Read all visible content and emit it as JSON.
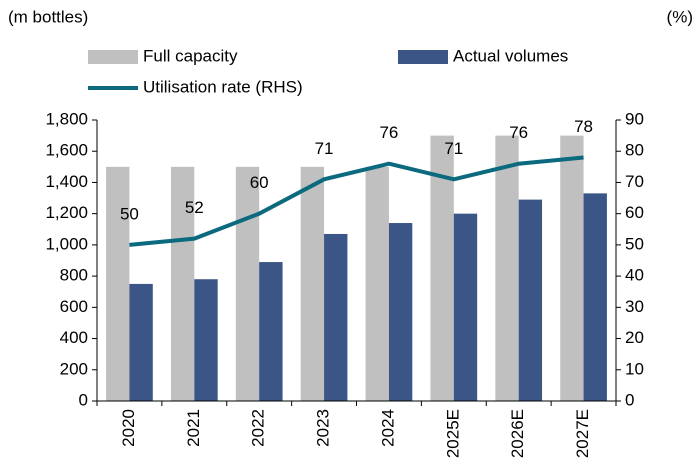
{
  "chart_data": {
    "type": "bar_line",
    "y_label": "(m bottles)",
    "y2_label": "(%)",
    "categories": [
      "2020",
      "2021",
      "2022",
      "2023",
      "2024",
      "2025E",
      "2026E",
      "2027E"
    ],
    "series": [
      {
        "name": "Full capacity",
        "type": "bar",
        "color": "#c0c0c0",
        "values": [
          1500,
          1500,
          1500,
          1500,
          1500,
          1700,
          1700,
          1700
        ]
      },
      {
        "name": "Actual volumes",
        "type": "bar",
        "color": "#3a5586",
        "values": [
          750,
          780,
          890,
          1070,
          1140,
          1200,
          1290,
          1330
        ]
      },
      {
        "name": "Utilisation rate (RHS)",
        "type": "line",
        "axis": "y2",
        "color": "#0b6a7e",
        "values": [
          50,
          52,
          60,
          71,
          76,
          71,
          76,
          78
        ]
      }
    ],
    "ylim": [
      0,
      1800
    ],
    "yticks": [
      0,
      200,
      400,
      600,
      800,
      {
        "value": 1000,
        "label": "1,000"
      },
      {
        "value": 1200,
        "label": "1,200"
      },
      {
        "value": 1400,
        "label": "1,400"
      },
      {
        "value": 1600,
        "label": "1,600"
      },
      {
        "value": 1800,
        "label": "1,800"
      }
    ],
    "y2lim": [
      0,
      90
    ],
    "y2ticks": [
      0,
      10,
      20,
      30,
      40,
      50,
      60,
      70,
      80,
      90
    ]
  }
}
